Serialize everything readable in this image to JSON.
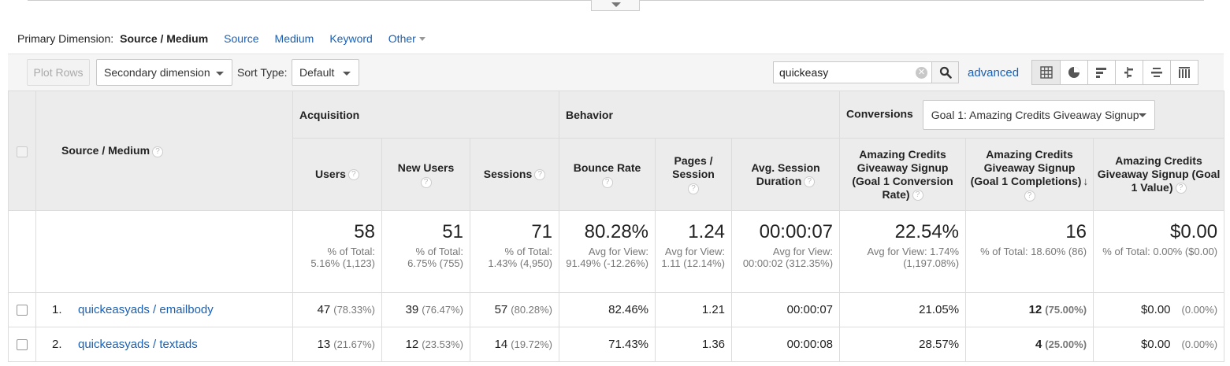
{
  "primary_dimension": {
    "label": "Primary Dimension:",
    "active": "Source / Medium",
    "options": [
      "Source",
      "Medium",
      "Keyword"
    ],
    "other": "Other"
  },
  "toolbar": {
    "plot_rows": "Plot Rows",
    "secondary_dimension": "Secondary dimension",
    "sort_type_label": "Sort Type:",
    "sort_type_value": "Default",
    "search_value": "quickeasy",
    "advanced": "advanced"
  },
  "table": {
    "dimension_header": "Source / Medium",
    "groups": {
      "acquisition": "Acquisition",
      "behavior": "Behavior",
      "conversions": "Conversions",
      "goal_select": "Goal 1: Amazing Credits Giveaway Signup"
    },
    "columns": {
      "users": "Users",
      "new_users": "New Users",
      "sessions": "Sessions",
      "bounce_rate": "Bounce Rate",
      "pages_session": "Pages / Session",
      "avg_session_duration": "Avg. Session Duration",
      "conv_rate": "Amazing Credits Giveaway Signup (Goal 1 Conversion Rate)",
      "completions": "Amazing Credits Giveaway Signup (Goal 1 Completions)",
      "value": "Amazing Credits Giveaway Signup (Goal 1 Value)"
    },
    "totals": {
      "users": {
        "value": "58",
        "sub": "% of Total: 5.16% (1,123)"
      },
      "new_users": {
        "value": "51",
        "sub": "% of Total: 6.75% (755)"
      },
      "sessions": {
        "value": "71",
        "sub": "% of Total: 1.43% (4,950)"
      },
      "bounce_rate": {
        "value": "80.28%",
        "sub": "Avg for View: 91.49% (-12.26%)"
      },
      "pages_session": {
        "value": "1.24",
        "sub": "Avg for View: 1.11 (12.14%)"
      },
      "avg_session_duration": {
        "value": "00:00:07",
        "sub": "Avg for View: 00:00:02 (312.35%)"
      },
      "conv_rate": {
        "value": "22.54%",
        "sub": "Avg for View: 1.74% (1,197.08%)"
      },
      "completions": {
        "value": "16",
        "sub": "% of Total: 18.60% (86)"
      },
      "value": {
        "value": "$0.00",
        "sub": "% of Total: 0.00% ($0.00)"
      }
    },
    "rows": [
      {
        "index": "1.",
        "name": "quickeasyads / emailbody",
        "users": "47",
        "users_pct": "(78.33%)",
        "new_users": "39",
        "new_users_pct": "(76.47%)",
        "sessions": "57",
        "sessions_pct": "(80.28%)",
        "bounce_rate": "82.46%",
        "pages_session": "1.21",
        "avg_session_duration": "00:00:07",
        "conv_rate": "21.05%",
        "completions": "12",
        "completions_pct": "(75.00%)",
        "value": "$0.00",
        "value_pct": "(0.00%)"
      },
      {
        "index": "2.",
        "name": "quickeasyads / textads",
        "users": "13",
        "users_pct": "(21.67%)",
        "new_users": "12",
        "new_users_pct": "(23.53%)",
        "sessions": "14",
        "sessions_pct": "(19.72%)",
        "bounce_rate": "71.43%",
        "pages_session": "1.36",
        "avg_session_duration": "00:00:08",
        "conv_rate": "28.57%",
        "completions": "4",
        "completions_pct": "(25.00%)",
        "value": "$0.00",
        "value_pct": "(0.00%)"
      }
    ]
  },
  "colors": {
    "link": "#1a5fb4",
    "header_bg": "#ececec",
    "toolbar_bg": "#f5f5f5"
  }
}
